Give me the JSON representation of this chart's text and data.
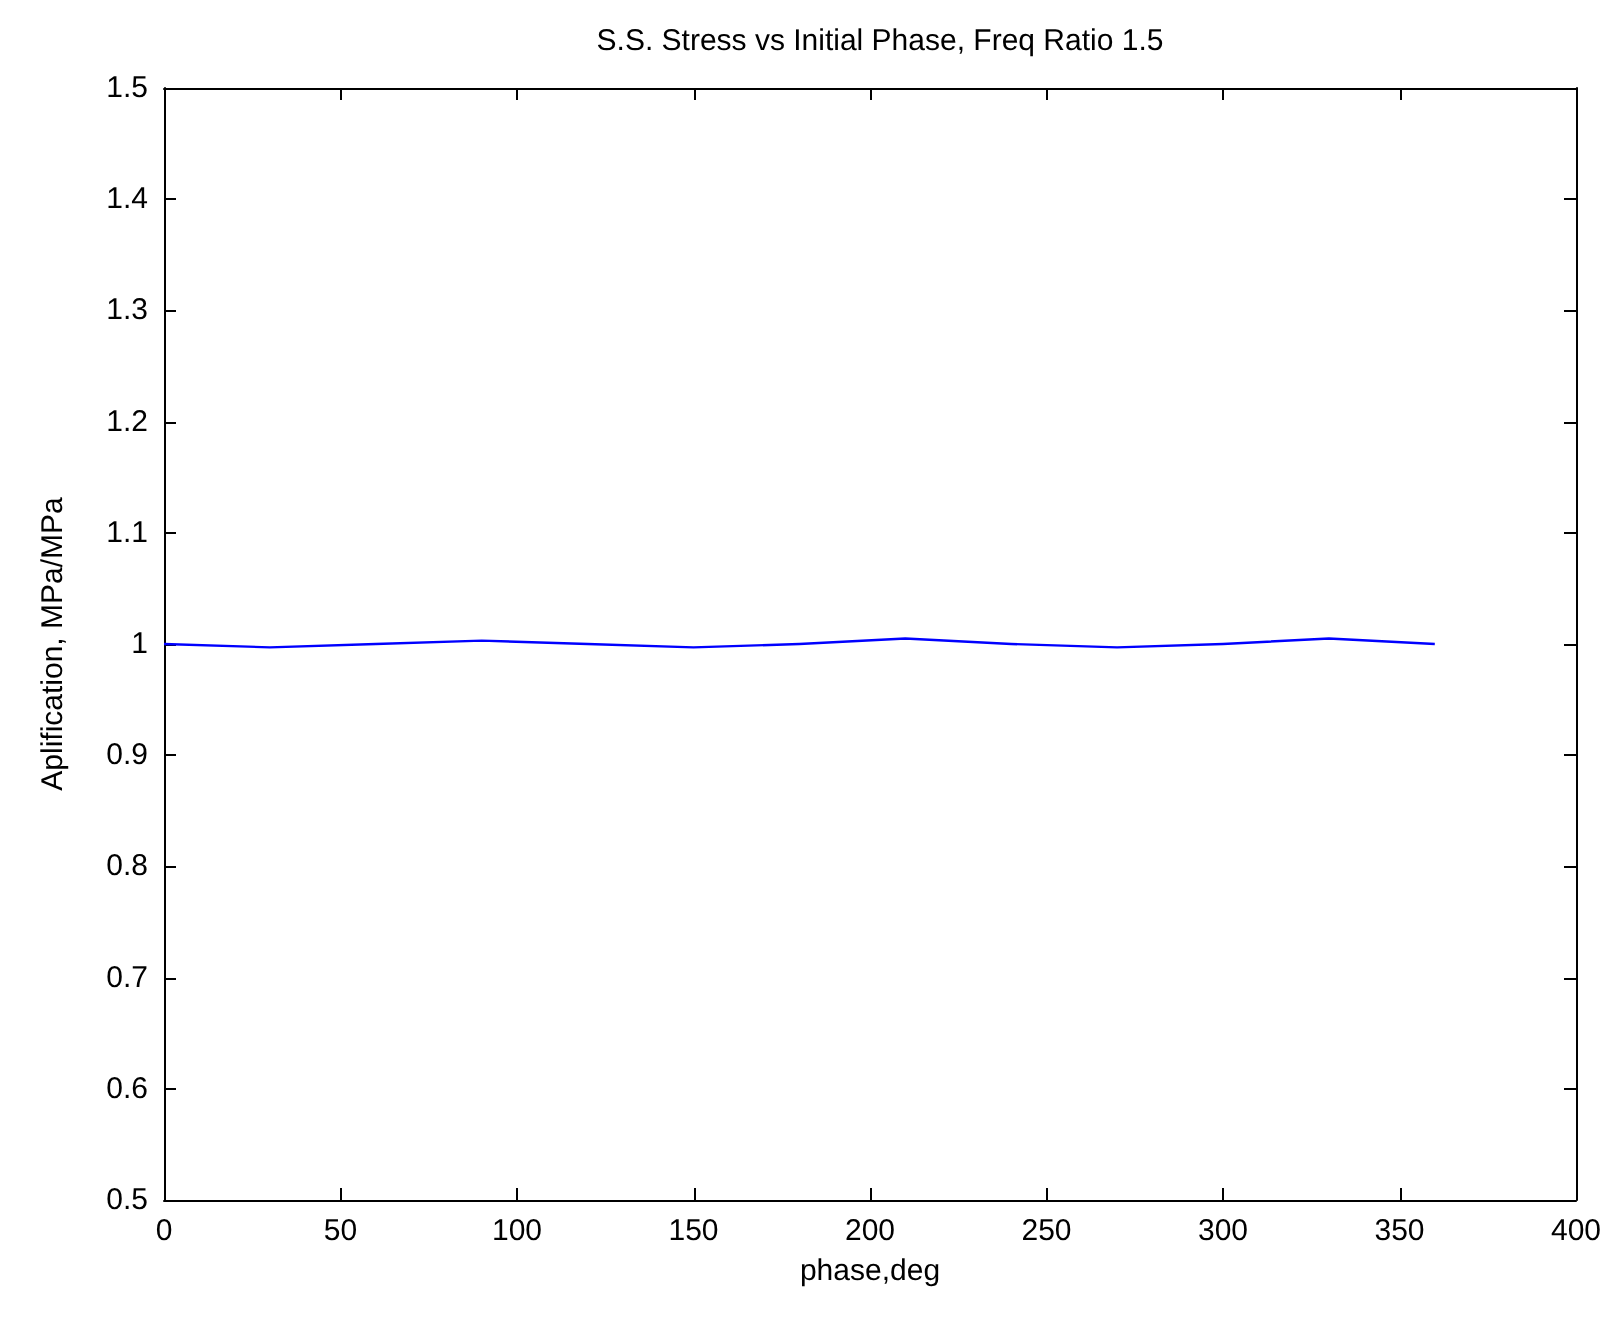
{
  "chart_data": {
    "type": "line",
    "title": "S.S. Stress vs Initial Phase, Freq Ratio 1.5",
    "xlabel": "phase,deg",
    "ylabel": "Aplification, MPa/MPa",
    "x": [
      0,
      30,
      60,
      90,
      120,
      150,
      180,
      210,
      240,
      270,
      300,
      330,
      360
    ],
    "series": [
      {
        "color": "#0000ff",
        "values": [
          1.0,
          0.997,
          1.0,
          1.003,
          1.0,
          0.997,
          1.0,
          1.005,
          1.0,
          0.997,
          1.0,
          1.005,
          1.0
        ]
      }
    ],
    "xlim": [
      0,
      400
    ],
    "xticks": [
      0,
      50,
      100,
      150,
      200,
      250,
      300,
      350,
      400
    ],
    "ylim": [
      0.5,
      1.5
    ],
    "yticks": [
      0.5,
      0.6,
      0.7,
      0.8,
      0.9,
      1,
      1.1,
      1.2,
      1.3,
      1.4,
      1.5
    ]
  }
}
